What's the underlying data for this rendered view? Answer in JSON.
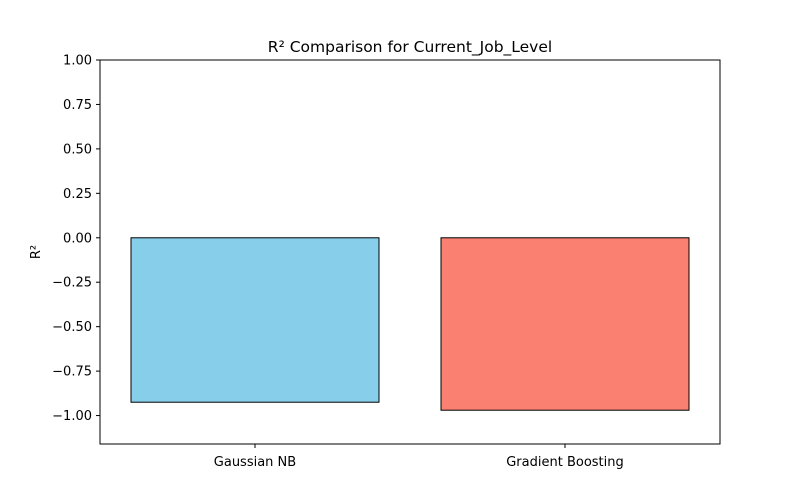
{
  "chart_data": {
    "type": "bar",
    "title": "R² Comparison for Current_Job_Level",
    "xlabel": "",
    "ylabel": "R²",
    "categories": [
      "Gaussian NB",
      "Gradient Boosting"
    ],
    "values": [
      -0.925,
      -0.97
    ],
    "colors": [
      "#87ceeb",
      "#fa8072"
    ],
    "edge_color": "#000000",
    "ylim": [
      -1.16,
      1.0
    ],
    "yticks": [
      1.0,
      0.75,
      0.5,
      0.25,
      0.0,
      -0.25,
      -0.5,
      -0.75,
      -1.0
    ],
    "ytick_labels": [
      "1.00",
      "0.75",
      "0.50",
      "0.25",
      "0.00",
      "−0.25",
      "−0.50",
      "−0.75",
      "−1.00"
    ],
    "grid": false,
    "legend": "none"
  }
}
